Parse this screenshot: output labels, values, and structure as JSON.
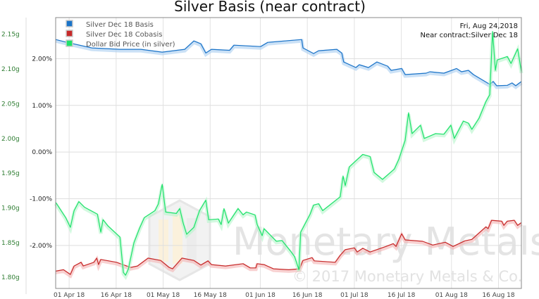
{
  "chart_data": {
    "type": "line",
    "title": "Silver Basis (near contract)",
    "info": {
      "date": "Fri, Aug 24,2018",
      "contract": "Near contract:Silver Dec 18"
    },
    "watermark": {
      "brand": "Monetary Metals",
      "copyright": "© 2017 Monetary Metals & Co."
    },
    "x_unit": "days since 01 Apr 18",
    "xlim": [
      -4.3,
      144.3
    ],
    "x_ticks": [
      {
        "day": 0,
        "label": "01 Apr 18"
      },
      {
        "day": 15,
        "label": "16 Apr 18"
      },
      {
        "day": 30,
        "label": "01 May 18"
      },
      {
        "day": 45,
        "label": "16 May 18"
      },
      {
        "day": 61,
        "label": "01 Jun 18"
      },
      {
        "day": 76,
        "label": "16 Jun 18"
      },
      {
        "day": 91,
        "label": "01 Jul 18"
      },
      {
        "day": 106,
        "label": "16 Jul 18"
      },
      {
        "day": 122,
        "label": "01 Aug 18"
      },
      {
        "day": 137,
        "label": "16 Aug 18"
      }
    ],
    "y_pct": {
      "lim": [
        -2.92,
        2.88
      ],
      "ticks": [
        {
          "v": 2,
          "label": "2.00%"
        },
        {
          "v": 1,
          "label": "1.00%"
        },
        {
          "v": 0,
          "label": "0.00%"
        },
        {
          "v": -1,
          "label": "-1.00%"
        },
        {
          "v": -2,
          "label": "-2.00%"
        }
      ]
    },
    "y_g": {
      "lim": [
        1.784,
        2.174
      ],
      "ticks": [
        {
          "v": 2.15,
          "label": "2.15g"
        },
        {
          "v": 2.1,
          "label": "2.10g"
        },
        {
          "v": 2.05,
          "label": "2.05g"
        },
        {
          "v": 2.0,
          "label": "2.00g"
        },
        {
          "v": 1.95,
          "label": "1.95g"
        },
        {
          "v": 1.9,
          "label": "1.90g"
        },
        {
          "v": 1.85,
          "label": "1.85g"
        },
        {
          "v": 1.8,
          "label": "1.80g"
        }
      ]
    },
    "grid": true,
    "legend_position": "top-left",
    "series": [
      {
        "name": "Silver Dec 18 Basis",
        "color": "#1a73c8",
        "shadow": "#a9cdf0",
        "axis": "pct",
        "points": [
          [
            -4.3,
            2.41
          ],
          [
            -0.7,
            2.35
          ],
          [
            7.2,
            2.23
          ],
          [
            16.2,
            2.2
          ],
          [
            22.9,
            2.2
          ],
          [
            29.7,
            2.14
          ],
          [
            36.9,
            2.2
          ],
          [
            39.8,
            2.38
          ],
          [
            42.0,
            2.32
          ],
          [
            43.6,
            2.12
          ],
          [
            45.4,
            2.2
          ],
          [
            51.2,
            2.18
          ],
          [
            52.6,
            2.29
          ],
          [
            61.1,
            2.26
          ],
          [
            63.4,
            2.35
          ],
          [
            74.2,
            2.41
          ],
          [
            74.6,
            2.23
          ],
          [
            78.0,
            2.11
          ],
          [
            79.6,
            2.17
          ],
          [
            85.4,
            2.2
          ],
          [
            87.0,
            2.12
          ],
          [
            87.6,
            1.93
          ],
          [
            91.5,
            1.81
          ],
          [
            92.6,
            1.87
          ],
          [
            95.5,
            1.81
          ],
          [
            98.2,
            1.93
          ],
          [
            101.6,
            1.84
          ],
          [
            102.7,
            1.75
          ],
          [
            106.1,
            1.79
          ],
          [
            107.2,
            1.66
          ],
          [
            113.9,
            1.69
          ],
          [
            115.1,
            1.72
          ],
          [
            119.6,
            1.69
          ],
          [
            123.6,
            1.79
          ],
          [
            125.2,
            1.72
          ],
          [
            127.4,
            1.75
          ],
          [
            129.0,
            1.66
          ],
          [
            134.2,
            1.45
          ],
          [
            135.3,
            1.51
          ],
          [
            136.4,
            1.42
          ],
          [
            139.8,
            1.43
          ],
          [
            141.3,
            1.48
          ],
          [
            142.5,
            1.42
          ],
          [
            144.3,
            1.51
          ]
        ]
      },
      {
        "name": "Silver Dec 18 Cobasis",
        "color": "#c62828",
        "shadow": "#f3b3b3",
        "axis": "pct",
        "points": [
          [
            -4.3,
            -2.55
          ],
          [
            -1.8,
            -2.52
          ],
          [
            0.4,
            -2.62
          ],
          [
            1.6,
            -2.44
          ],
          [
            3.8,
            -2.36
          ],
          [
            4.5,
            -2.44
          ],
          [
            7.9,
            -2.36
          ],
          [
            8.8,
            -2.27
          ],
          [
            9.4,
            -2.41
          ],
          [
            10.1,
            -2.3
          ],
          [
            15.1,
            -2.36
          ],
          [
            19.6,
            -2.47
          ],
          [
            21.8,
            -2.44
          ],
          [
            25.2,
            -2.27
          ],
          [
            29.2,
            -2.32
          ],
          [
            31.9,
            -2.47
          ],
          [
            33.0,
            -2.5
          ],
          [
            36.0,
            -2.27
          ],
          [
            39.8,
            -2.32
          ],
          [
            42.0,
            -2.42
          ],
          [
            44.3,
            -2.33
          ],
          [
            45.4,
            -2.41
          ],
          [
            49.9,
            -2.44
          ],
          [
            55.5,
            -2.39
          ],
          [
            57.8,
            -2.48
          ],
          [
            59.6,
            -2.48
          ],
          [
            60.0,
            -2.39
          ],
          [
            62.2,
            -2.41
          ],
          [
            65.2,
            -2.5
          ],
          [
            70.1,
            -2.52
          ],
          [
            73.5,
            -2.5
          ],
          [
            74.6,
            -2.32
          ],
          [
            77.5,
            -2.26
          ],
          [
            78.2,
            -2.33
          ],
          [
            84.9,
            -2.36
          ],
          [
            86.5,
            -2.21
          ],
          [
            88.1,
            -2.09
          ],
          [
            91.0,
            -2.05
          ],
          [
            91.9,
            -2.14
          ],
          [
            93.7,
            -2.06
          ],
          [
            96.0,
            -2.14
          ],
          [
            101.1,
            -2.02
          ],
          [
            103.4,
            -1.96
          ],
          [
            104.3,
            -2.02
          ],
          [
            106.1,
            -1.75
          ],
          [
            107.2,
            -1.88
          ],
          [
            112.8,
            -1.91
          ],
          [
            116.0,
            -1.99
          ],
          [
            120.0,
            -1.93
          ],
          [
            122.5,
            -2.02
          ],
          [
            126.3,
            -1.9
          ],
          [
            128.5,
            -1.87
          ],
          [
            133.0,
            -1.6
          ],
          [
            133.7,
            -1.64
          ],
          [
            134.8,
            -1.46
          ],
          [
            138.0,
            -1.48
          ],
          [
            138.7,
            -1.57
          ],
          [
            139.8,
            -1.48
          ],
          [
            142.0,
            -1.46
          ],
          [
            143.1,
            -1.57
          ],
          [
            144.3,
            -1.51
          ]
        ]
      },
      {
        "name": "Dollar Bid Price (in silver)",
        "color": "#1de26a",
        "shadow": "#b6f5cc",
        "axis": "g",
        "points": [
          [
            -4.3,
            1.908
          ],
          [
            -1.1,
            1.886
          ],
          [
            0.4,
            1.872
          ],
          [
            1.6,
            1.896
          ],
          [
            3.1,
            1.909
          ],
          [
            4.9,
            1.901
          ],
          [
            9.0,
            1.891
          ],
          [
            10.1,
            1.865
          ],
          [
            10.8,
            1.883
          ],
          [
            12.4,
            1.874
          ],
          [
            16.2,
            1.858
          ],
          [
            17.3,
            1.807
          ],
          [
            18.0,
            1.803
          ],
          [
            18.9,
            1.812
          ],
          [
            20.7,
            1.85
          ],
          [
            22.5,
            1.871
          ],
          [
            24.0,
            1.886
          ],
          [
            27.4,
            1.896
          ],
          [
            28.5,
            1.906
          ],
          [
            29.7,
            1.934
          ],
          [
            30.8,
            1.894
          ],
          [
            34.2,
            1.892
          ],
          [
            35.3,
            1.899
          ],
          [
            36.4,
            1.878
          ],
          [
            37.5,
            1.862
          ],
          [
            39.8,
            1.872
          ],
          [
            41.6,
            1.896
          ],
          [
            43.6,
            1.911
          ],
          [
            44.5,
            1.883
          ],
          [
            47.6,
            1.884
          ],
          [
            48.5,
            1.876
          ],
          [
            49.4,
            1.899
          ],
          [
            50.8,
            1.878
          ],
          [
            53.9,
            1.899
          ],
          [
            55.5,
            1.89
          ],
          [
            56.6,
            1.894
          ],
          [
            59.3,
            1.89
          ],
          [
            60.0,
            1.876
          ],
          [
            61.6,
            1.86
          ],
          [
            62.2,
            1.87
          ],
          [
            66.1,
            1.852
          ],
          [
            67.9,
            1.853
          ],
          [
            70.6,
            1.838
          ],
          [
            71.9,
            1.83
          ],
          [
            73.3,
            1.811
          ],
          [
            73.9,
            1.865
          ],
          [
            76.9,
            1.891
          ],
          [
            78.0,
            1.904
          ],
          [
            79.6,
            1.906
          ],
          [
            80.9,
            1.896
          ],
          [
            86.5,
            1.916
          ],
          [
            87.4,
            1.946
          ],
          [
            88.1,
            1.932
          ],
          [
            89.4,
            1.959
          ],
          [
            93.7,
            1.977
          ],
          [
            96.0,
            1.974
          ],
          [
            97.3,
            1.951
          ],
          [
            100.0,
            1.941
          ],
          [
            103.8,
            1.956
          ],
          [
            105.2,
            1.97
          ],
          [
            107.2,
            1.997
          ],
          [
            108.3,
            2.037
          ],
          [
            109.4,
            2.007
          ],
          [
            112.1,
            2.019
          ],
          [
            113.3,
            2.0
          ],
          [
            116.9,
            2.007
          ],
          [
            119.6,
            2.006
          ],
          [
            121.8,
            2.019
          ],
          [
            122.9,
            2.0
          ],
          [
            125.8,
            2.025
          ],
          [
            127.4,
            2.022
          ],
          [
            128.5,
            2.013
          ],
          [
            130.8,
            2.029
          ],
          [
            133.0,
            2.053
          ],
          [
            134.2,
            2.063
          ],
          [
            135.1,
            2.154
          ],
          [
            136.0,
            2.098
          ],
          [
            136.6,
            2.113
          ],
          [
            139.8,
            2.118
          ],
          [
            141.0,
            2.108
          ],
          [
            143.1,
            2.129
          ],
          [
            144.3,
            2.096
          ]
        ]
      }
    ]
  }
}
